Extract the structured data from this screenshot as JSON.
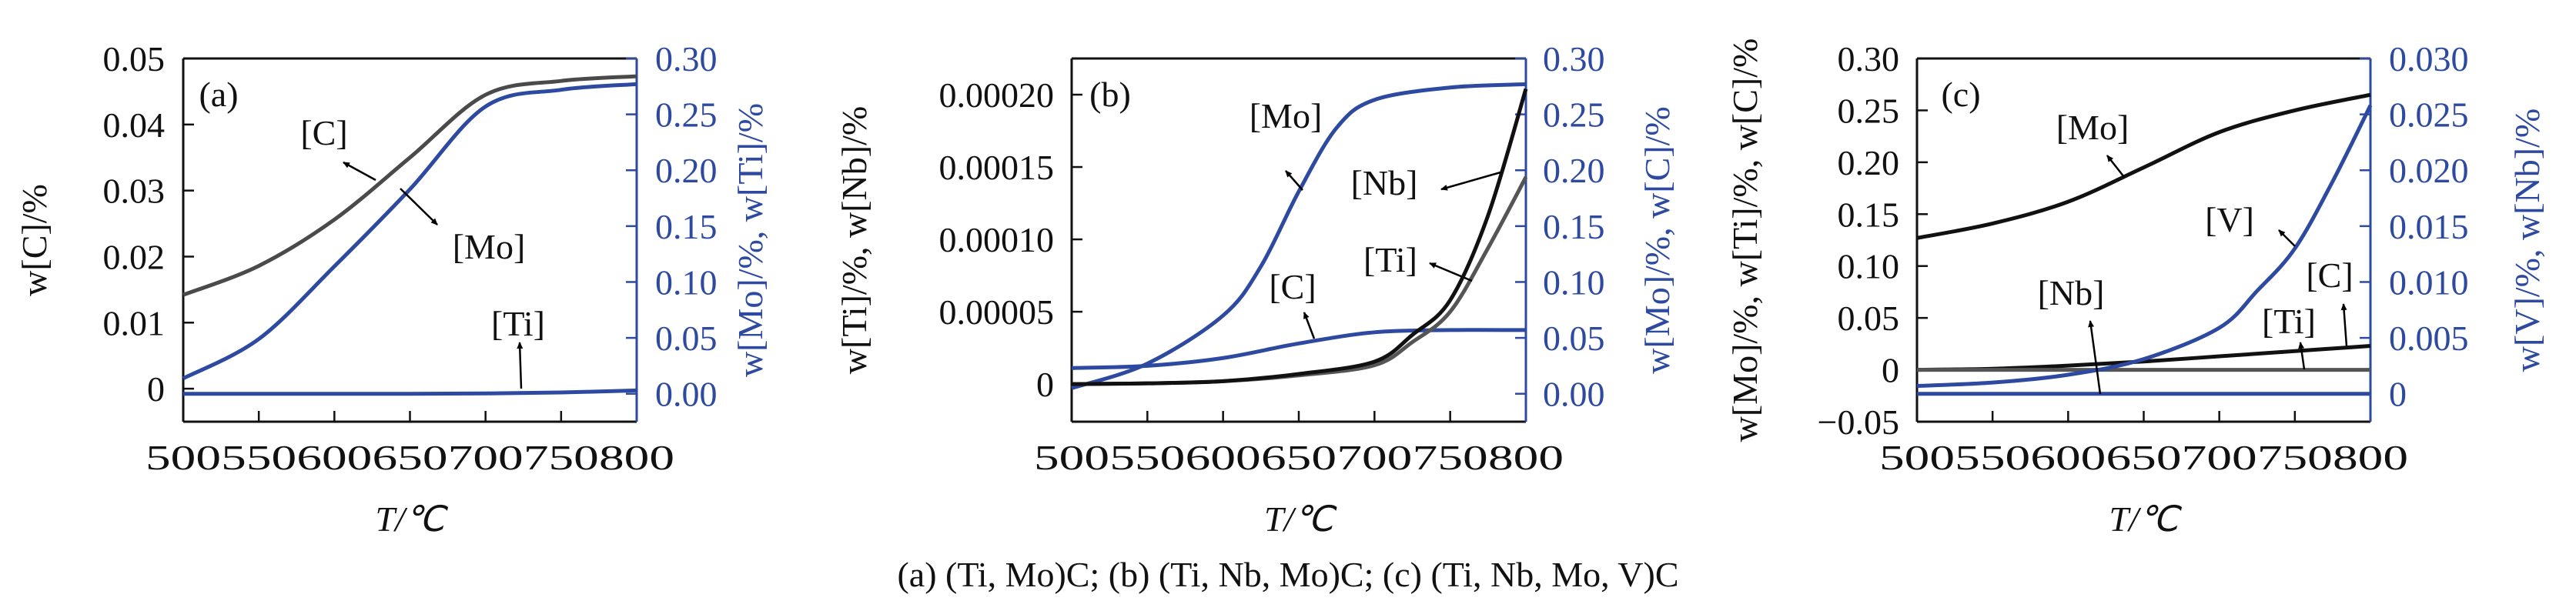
{
  "caption": "(a) (Ti, Mo)C; (b) (Ti, Nb, Mo)C; (c) (Ti, Nb, Mo, V)C",
  "colors": {
    "axis_left": "#111111",
    "axis_right": "#2e4aa0",
    "black": "#111111",
    "gray": "#555555",
    "blue": "#2e4aa0"
  },
  "chart_data": [
    {
      "type": "line",
      "panel_label": "(a)",
      "xlabel": "T/℃",
      "ylabel_left": "w[C]/%",
      "ylabel_right": "w[Mo]/%, w[Ti]/%",
      "xlim": [
        500,
        800
      ],
      "ylim_left": [
        -0.005,
        0.05
      ],
      "ylim_right": [
        -0.025,
        0.3
      ],
      "x_ticks": [
        "500",
        "550",
        "600",
        "650",
        "700",
        "750",
        "800"
      ],
      "y_ticks_left": [
        "0",
        "0.01",
        "0.02",
        "0.03",
        "0.04",
        "0.05"
      ],
      "y_ticks_right": [
        "0.00",
        "0.05",
        "0.10",
        "0.15",
        "0.20",
        "0.25",
        "0.30"
      ],
      "grid": false,
      "series": [
        {
          "name": "[C]",
          "axis": "left",
          "color": "#4a4a4a",
          "x": [
            500,
            550,
            600,
            650,
            700,
            750,
            800
          ],
          "y": [
            0.0142,
            0.0186,
            0.0256,
            0.035,
            0.0445,
            0.0466,
            0.0473
          ]
        },
        {
          "name": "[Mo]",
          "axis": "right",
          "color": "#2e4aa0",
          "x": [
            500,
            550,
            600,
            650,
            700,
            750,
            800
          ],
          "y": [
            0.0137,
            0.049,
            0.114,
            0.183,
            0.257,
            0.272,
            0.277
          ]
        },
        {
          "name": "[Ti]",
          "axis": "right",
          "color": "#2e4aa0",
          "x": [
            500,
            550,
            600,
            650,
            700,
            750,
            800
          ],
          "y": [
            0,
            0,
            0,
            0,
            0.0003,
            0.0012,
            0.003
          ]
        }
      ]
    },
    {
      "type": "line",
      "panel_label": "(b)",
      "xlabel": "T/℃",
      "ylabel_left": "w[Ti]/%, w[Nb]/%",
      "ylabel_right": "w[Mo]/%, w[C]/%",
      "xlim": [
        500,
        800
      ],
      "ylim_left": [
        -2.6e-05,
        0.000225
      ],
      "ylim_right": [
        -0.025,
        0.3
      ],
      "x_ticks": [
        "500",
        "550",
        "600",
        "650",
        "700",
        "750",
        "800"
      ],
      "y_ticks_left": [
        "0",
        "0.00005",
        "0.00010",
        "0.00015",
        "0.00020"
      ],
      "y_ticks_right": [
        "0.00",
        "0.05",
        "0.10",
        "0.15",
        "0.20",
        "0.25",
        "0.30"
      ],
      "grid": false,
      "series": [
        {
          "name": "[Mo]",
          "axis": "right",
          "color": "#2e4aa0",
          "x": [
            500,
            550,
            600,
            625,
            650,
            675,
            700,
            750,
            800
          ],
          "y": [
            0.005,
            0.027,
            0.07,
            0.114,
            0.181,
            0.238,
            0.263,
            0.274,
            0.277
          ]
        },
        {
          "name": "[C]",
          "axis": "right",
          "color": "#2e4aa0",
          "x": [
            500,
            550,
            600,
            650,
            700,
            750,
            800
          ],
          "y": [
            0.023,
            0.025,
            0.032,
            0.045,
            0.055,
            0.057,
            0.057
          ]
        },
        {
          "name": "[Ti]",
          "axis": "left",
          "color": "#555555",
          "x": [
            500,
            550,
            600,
            650,
            700,
            725,
            750,
            775,
            800
          ],
          "y": [
            0,
            5e-07,
            2e-06,
            6e-06,
            1.3e-05,
            2.9e-05,
            5e-05,
            9.4e-05,
            0.000143
          ]
        },
        {
          "name": "[Nb]",
          "axis": "left",
          "color": "#111111",
          "x": [
            500,
            550,
            600,
            650,
            700,
            725,
            750,
            775,
            800
          ],
          "y": [
            0,
            5e-07,
            2e-06,
            7e-06,
            1.55e-05,
            3.4e-05,
            5.8e-05,
            0.0001165,
            0.000204
          ]
        }
      ]
    },
    {
      "type": "line",
      "panel_label": "(c)",
      "xlabel": "T/℃",
      "ylabel_left": "w[Mo]/%, w[Ti]/%, w[C]/%",
      "ylabel_right": "w[V]/%, w[Nb]/%",
      "xlim": [
        500,
        800
      ],
      "ylim_left": [
        -0.05,
        0.3
      ],
      "ylim_right": [
        -0.0025,
        0.03
      ],
      "x_ticks": [
        "500",
        "550",
        "600",
        "650",
        "700",
        "750",
        "800"
      ],
      "y_ticks_left": [
        "−0.05",
        "0",
        "0.05",
        "0.10",
        "0.15",
        "0.20",
        "0.25",
        "0.30"
      ],
      "y_ticks_right": [
        "0",
        "0.005",
        "0.010",
        "0.015",
        "0.020",
        "0.025",
        "0.030"
      ],
      "grid": false,
      "series": [
        {
          "name": "[Mo]",
          "axis": "left",
          "color": "#111111",
          "x": [
            500,
            550,
            600,
            650,
            700,
            750,
            800
          ],
          "y": [
            0.127,
            0.141,
            0.162,
            0.195,
            0.229,
            0.25,
            0.265
          ]
        },
        {
          "name": "[C]",
          "axis": "left",
          "color": "#111111",
          "x": [
            500,
            550,
            600,
            650,
            700,
            750,
            800
          ],
          "y": [
            0,
            0.001,
            0.004,
            0.008,
            0.013,
            0.018,
            0.023
          ]
        },
        {
          "name": "[Ti]",
          "axis": "left",
          "color": "#555555",
          "x": [
            500,
            800
          ],
          "y": [
            0,
            0
          ]
        },
        {
          "name": "[V]",
          "axis": "right",
          "color": "#2e4aa0",
          "x": [
            500,
            550,
            600,
            650,
            700,
            725,
            750,
            775,
            800
          ],
          "y": [
            0.0007,
            0.001,
            0.0017,
            0.0031,
            0.0059,
            0.0092,
            0.013,
            0.019,
            0.0258
          ]
        },
        {
          "name": "[Nb]",
          "axis": "right",
          "color": "#2e4aa0",
          "x": [
            500,
            800
          ],
          "y": [
            0,
            0
          ]
        }
      ]
    }
  ]
}
